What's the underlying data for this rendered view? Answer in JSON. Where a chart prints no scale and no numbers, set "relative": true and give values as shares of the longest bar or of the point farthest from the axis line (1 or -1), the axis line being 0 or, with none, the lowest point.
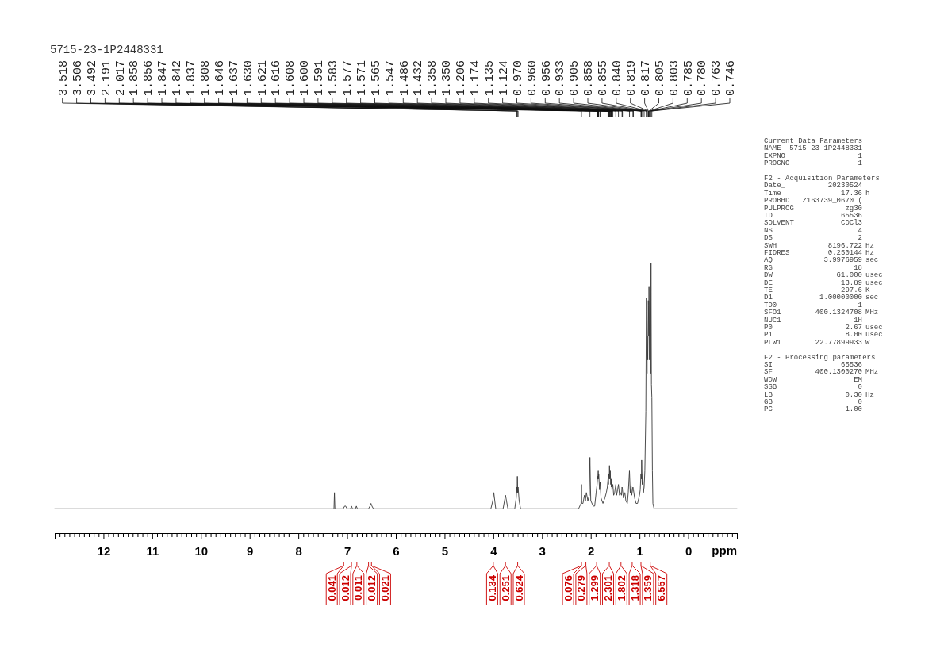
{
  "chart_data": {
    "type": "line",
    "title": "5715-23-1P2448331",
    "xlabel": "ppm",
    "relative": true,
    "xlim": [
      13,
      -1
    ],
    "xticks": [
      {
        "value": 13,
        "label": null
      },
      {
        "value": 12.9,
        "label": null
      },
      {
        "value": 12.8,
        "label": null
      },
      {
        "value": 12.7,
        "label": null
      },
      {
        "value": 12.6,
        "label": null
      },
      {
        "value": 12.5,
        "label": null
      },
      {
        "value": 12.4,
        "label": null
      },
      {
        "value": 12.3,
        "label": null
      },
      {
        "value": 12.2,
        "label": null
      },
      {
        "value": 12.1,
        "label": null
      },
      12,
      {
        "value": 11.9,
        "label": null
      },
      {
        "value": 11.8,
        "label": null
      },
      {
        "value": 11.7,
        "label": null
      },
      {
        "value": 11.6,
        "label": null
      },
      {
        "value": 11.5,
        "label": null
      },
      {
        "value": 11.4,
        "label": null
      },
      {
        "value": 11.3,
        "label": null
      },
      {
        "value": 11.2,
        "label": null
      },
      {
        "value": 11.1,
        "label": null
      },
      11,
      {
        "value": 10.9,
        "label": null
      },
      {
        "value": 10.8,
        "label": null
      },
      {
        "value": 10.7,
        "label": null
      },
      {
        "value": 10.6,
        "label": null
      },
      {
        "value": 10.5,
        "label": null
      },
      {
        "value": 10.4,
        "label": null
      },
      {
        "value": 10.3,
        "label": null
      },
      {
        "value": 10.2,
        "label": null
      },
      {
        "value": 10.1,
        "label": null
      },
      10,
      {
        "value": 9.9,
        "label": null
      },
      {
        "value": 9.8,
        "label": null
      },
      {
        "value": 9.7,
        "label": null
      },
      {
        "value": 9.6,
        "label": null
      },
      {
        "value": 9.5,
        "label": null
      },
      {
        "value": 9.4,
        "label": null
      },
      {
        "value": 9.3,
        "label": null
      },
      {
        "value": 9.2,
        "label": null
      },
      {
        "value": 9.1,
        "label": null
      },
      9,
      {
        "value": 8.9,
        "label": null
      },
      {
        "value": 8.8,
        "label": null
      },
      {
        "value": 8.7,
        "label": null
      },
      {
        "value": 8.6,
        "label": null
      },
      {
        "value": 8.5,
        "label": null
      },
      {
        "value": 8.4,
        "label": null
      },
      {
        "value": 8.3,
        "label": null
      },
      {
        "value": 8.2,
        "label": null
      },
      {
        "value": 8.1,
        "label": null
      },
      8,
      {
        "value": 7.9,
        "label": null
      },
      {
        "value": 7.8,
        "label": null
      },
      {
        "value": 7.7,
        "label": null
      },
      {
        "value": 7.6,
        "label": null
      },
      {
        "value": 7.5,
        "label": null
      },
      {
        "value": 7.4,
        "label": null
      },
      {
        "value": 7.3,
        "label": null
      },
      {
        "value": 7.2,
        "label": null
      },
      {
        "value": 7.1,
        "label": null
      },
      7,
      {
        "value": 6.9,
        "label": null
      },
      {
        "value": 6.8,
        "label": null
      },
      {
        "value": 6.7,
        "label": null
      },
      {
        "value": 6.6,
        "label": null
      },
      {
        "value": 6.5,
        "label": null
      },
      {
        "value": 6.4,
        "label": null
      },
      {
        "value": 6.3,
        "label": null
      },
      {
        "value": 6.2,
        "label": null
      },
      {
        "value": 6.1,
        "label": null
      },
      6,
      {
        "value": 5.9,
        "label": null
      },
      {
        "value": 5.8,
        "label": null
      },
      {
        "value": 5.7,
        "label": null
      },
      {
        "value": 5.6,
        "label": null
      },
      {
        "value": 5.5,
        "label": null
      },
      {
        "value": 5.4,
        "label": null
      },
      {
        "value": 5.3,
        "label": null
      },
      {
        "value": 5.2,
        "label": null
      },
      {
        "value": 5.1,
        "label": null
      },
      5,
      {
        "value": 4.9,
        "label": null
      },
      {
        "value": 4.8,
        "label": null
      },
      {
        "value": 4.7,
        "label": null
      },
      {
        "value": 4.6,
        "label": null
      },
      {
        "value": 4.5,
        "label": null
      },
      {
        "value": 4.4,
        "label": null
      },
      {
        "value": 4.3,
        "label": null
      },
      {
        "value": 4.2,
        "label": null
      },
      {
        "value": 4.1,
        "label": null
      },
      4,
      {
        "value": 3.9,
        "label": null
      },
      {
        "value": 3.8,
        "label": null
      },
      {
        "value": 3.7,
        "label": null
      },
      {
        "value": 3.6,
        "label": null
      },
      {
        "value": 3.5,
        "label": null
      },
      {
        "value": 3.4,
        "label": null
      },
      {
        "value": 3.3,
        "label": null
      },
      {
        "value": 3.2,
        "label": null
      },
      {
        "value": 3.1,
        "label": null
      },
      3,
      {
        "value": 2.9,
        "label": null
      },
      {
        "value": 2.8,
        "label": null
      },
      {
        "value": 2.7,
        "label": null
      },
      {
        "value": 2.6,
        "label": null
      },
      {
        "value": 2.5,
        "label": null
      },
      {
        "value": 2.4,
        "label": null
      },
      {
        "value": 2.3,
        "label": null
      },
      {
        "value": 2.2,
        "label": null
      },
      {
        "value": 2.1,
        "label": null
      },
      2,
      {
        "value": 1.9,
        "label": null
      },
      {
        "value": 1.8,
        "label": null
      },
      {
        "value": 1.7,
        "label": null
      },
      {
        "value": 1.6,
        "label": null
      },
      {
        "value": 1.5,
        "label": null
      },
      {
        "value": 1.4,
        "label": null
      },
      {
        "value": 1.3,
        "label": null
      },
      {
        "value": 1.2,
        "label": null
      },
      {
        "value": 1.1,
        "label": null
      },
      1,
      {
        "value": 0.9,
        "label": null
      },
      {
        "value": 0.8,
        "label": null
      },
      {
        "value": 0.7,
        "label": null
      },
      {
        "value": 0.6,
        "label": null
      },
      {
        "value": 0.5,
        "label": null
      },
      {
        "value": 0.4,
        "label": null
      },
      {
        "value": 0.3,
        "label": null
      },
      {
        "value": 0.2,
        "label": null
      },
      {
        "value": 0.1,
        "label": null
      },
      0,
      {
        "value": -0.1,
        "label": null
      },
      {
        "value": -0.2,
        "label": null
      },
      {
        "value": -0.3,
        "label": null
      },
      {
        "value": -0.4,
        "label": null
      },
      {
        "value": -0.5,
        "label": null
      },
      {
        "value": -0.6,
        "label": null
      },
      {
        "value": -0.7,
        "label": null
      },
      {
        "value": -0.8,
        "label": null
      },
      {
        "value": -0.9,
        "label": null
      },
      {
        "value": -1,
        "label": null
      }
    ],
    "series": [
      {
        "color": "#3a3a3a",
        "x": [
          13.0,
          7.4,
          7.27,
          7.26,
          7.25,
          7.08,
          7.05,
          7.03,
          7.0,
          6.93,
          6.91,
          6.89,
          6.83,
          6.81,
          6.79,
          6.56,
          6.53,
          6.51,
          6.49,
          6.46,
          4.05,
          4.01,
          3.99,
          3.97,
          3.95,
          3.8,
          3.77,
          3.75,
          3.73,
          3.7,
          3.56,
          3.53,
          3.518,
          3.512,
          3.506,
          3.499,
          3.492,
          3.47,
          3.44,
          2.25,
          2.2,
          2.191,
          2.185,
          2.16,
          2.13,
          2.11,
          2.09,
          2.06,
          2.03,
          2.017,
          2.0,
          1.95,
          1.92,
          1.89,
          1.87,
          1.858,
          1.856,
          1.847,
          1.842,
          1.837,
          1.82,
          1.808,
          1.79,
          1.75,
          1.71,
          1.68,
          1.66,
          1.646,
          1.637,
          1.63,
          1.621,
          1.616,
          1.608,
          1.6,
          1.591,
          1.583,
          1.577,
          1.571,
          1.565,
          1.547,
          1.53,
          1.51,
          1.486,
          1.47,
          1.45,
          1.432,
          1.41,
          1.39,
          1.37,
          1.358,
          1.35,
          1.33,
          1.3,
          1.28,
          1.25,
          1.23,
          1.206,
          1.19,
          1.174,
          1.16,
          1.135,
          1.124,
          1.1,
          1.07,
          1.04,
          1.0,
          0.985,
          0.97,
          0.96,
          0.956,
          0.945,
          0.933,
          0.92,
          0.905,
          0.89,
          0.87,
          0.858,
          0.855,
          0.845,
          0.84,
          0.83,
          0.819,
          0.817,
          0.81,
          0.805,
          0.803,
          0.795,
          0.785,
          0.78,
          0.77,
          0.763,
          0.755,
          0.746,
          0.735,
          0.725,
          0.7,
          -1.0
        ],
        "values": [
          0.09,
          0.09,
          0.09,
          0.15,
          0.09,
          0.09,
          0.1,
          0.1,
          0.09,
          0.09,
          0.1,
          0.09,
          0.09,
          0.1,
          0.09,
          0.09,
          0.1,
          0.11,
          0.1,
          0.09,
          0.09,
          0.12,
          0.15,
          0.12,
          0.09,
          0.09,
          0.12,
          0.14,
          0.12,
          0.09,
          0.09,
          0.13,
          0.17,
          0.15,
          0.21,
          0.15,
          0.17,
          0.12,
          0.09,
          0.09,
          0.11,
          0.18,
          0.11,
          0.11,
          0.14,
          0.12,
          0.15,
          0.12,
          0.14,
          0.28,
          0.12,
          0.1,
          0.1,
          0.15,
          0.18,
          0.21,
          0.2,
          0.23,
          0.2,
          0.22,
          0.16,
          0.19,
          0.13,
          0.11,
          0.13,
          0.15,
          0.17,
          0.2,
          0.18,
          0.22,
          0.2,
          0.25,
          0.2,
          0.23,
          0.18,
          0.2,
          0.17,
          0.19,
          0.16,
          0.18,
          0.14,
          0.15,
          0.18,
          0.14,
          0.16,
          0.18,
          0.14,
          0.15,
          0.14,
          0.17,
          0.16,
          0.13,
          0.15,
          0.12,
          0.11,
          0.15,
          0.23,
          0.15,
          0.18,
          0.14,
          0.17,
          0.16,
          0.13,
          0.11,
          0.11,
          0.14,
          0.16,
          0.22,
          0.2,
          0.27,
          0.18,
          0.22,
          0.15,
          0.17,
          0.23,
          0.45,
          0.87,
          0.82,
          0.59,
          0.73,
          0.64,
          0.86,
          0.84,
          0.73,
          0.91,
          0.86,
          0.64,
          0.86,
          0.82,
          0.59,
          1,
          0.55,
          0.5,
          0.23,
          0.11,
          0.09,
          0.09
        ]
      }
    ],
    "annotations": [
      {
        "text": "3.518",
        "x": 3.518
      },
      {
        "text": "3.506",
        "x": 3.506
      },
      {
        "text": "3.492",
        "x": 3.492
      },
      {
        "text": "2.191",
        "x": 2.191
      },
      {
        "text": "2.017",
        "x": 2.017
      },
      {
        "text": "1.858",
        "x": 1.858
      },
      {
        "text": "1.856",
        "x": 1.856
      },
      {
        "text": "1.847",
        "x": 1.847
      },
      {
        "text": "1.842",
        "x": 1.842
      },
      {
        "text": "1.837",
        "x": 1.837
      },
      {
        "text": "1.808",
        "x": 1.808
      },
      {
        "text": "1.646",
        "x": 1.646
      },
      {
        "text": "1.637",
        "x": 1.637
      },
      {
        "text": "1.630",
        "x": 1.63
      },
      {
        "text": "1.621",
        "x": 1.621
      },
      {
        "text": "1.616",
        "x": 1.616
      },
      {
        "text": "1.608",
        "x": 1.608
      },
      {
        "text": "1.600",
        "x": 1.6
      },
      {
        "text": "1.591",
        "x": 1.591
      },
      {
        "text": "1.583",
        "x": 1.583
      },
      {
        "text": "1.577",
        "x": 1.577
      },
      {
        "text": "1.571",
        "x": 1.571
      },
      {
        "text": "1.565",
        "x": 1.565
      },
      {
        "text": "1.547",
        "x": 1.547
      },
      {
        "text": "1.486",
        "x": 1.486
      },
      {
        "text": "1.432",
        "x": 1.432
      },
      {
        "text": "1.358",
        "x": 1.358
      },
      {
        "text": "1.350",
        "x": 1.35
      },
      {
        "text": "1.206",
        "x": 1.206
      },
      {
        "text": "1.174",
        "x": 1.174
      },
      {
        "text": "1.135",
        "x": 1.135
      },
      {
        "text": "1.124",
        "x": 1.124
      },
      {
        "text": "0.970",
        "x": 0.97
      },
      {
        "text": "0.960",
        "x": 0.96
      },
      {
        "text": "0.956",
        "x": 0.956
      },
      {
        "text": "0.933",
        "x": 0.933
      },
      {
        "text": "0.905",
        "x": 0.905
      },
      {
        "text": "0.858",
        "x": 0.858
      },
      {
        "text": "0.855",
        "x": 0.855
      },
      {
        "text": "0.840",
        "x": 0.84
      },
      {
        "text": "0.819",
        "x": 0.819
      },
      {
        "text": "0.817",
        "x": 0.817
      },
      {
        "text": "0.805",
        "x": 0.805
      },
      {
        "text": "0.803",
        "x": 0.803
      },
      {
        "text": "0.785",
        "x": 0.785
      },
      {
        "text": "0.780",
        "x": 0.78
      },
      {
        "text": "0.763",
        "x": 0.763
      },
      {
        "text": "0.746",
        "x": 0.746
      },
      {
        "text": "0.041",
        "x": 7.07
      },
      {
        "text": "0.012",
        "x": 6.91
      },
      {
        "text": "0.011",
        "x": 6.8
      },
      {
        "text": "0.012",
        "x": 6.56
      },
      {
        "text": "0.021",
        "x": 6.5
      },
      {
        "text": "0.134",
        "x": 4.0
      },
      {
        "text": "0.251",
        "x": 3.75
      },
      {
        "text": "0.624",
        "x": 3.5
      },
      {
        "text": "0.076",
        "x": 2.19
      },
      {
        "text": "0.279",
        "x": 2.1
      },
      {
        "text": "1.299",
        "x": 1.88
      },
      {
        "text": "2.301",
        "x": 1.62
      },
      {
        "text": "1.802",
        "x": 1.38
      },
      {
        "text": "1.318",
        "x": 1.15
      },
      {
        "text": "1.359",
        "x": 0.97
      },
      {
        "text": "6.557",
        "x": 0.78
      },
      "Current Data Parameters",
      "NAME\t5715-23-1P2448331",
      "EXPNO\t1",
      "PROCNO\t1",
      "F2 - Acquisition Parameters",
      "Date_\t20230524",
      "Time\t17.36\th",
      "PROBHD\tZ163739_0670 (",
      "PULPROG\tzg30",
      "TD\t65536",
      "SOLVENT\tCDCl3",
      "NS\t4",
      "DS\t2",
      "SWH\t8196.722\tHz",
      "FIDRES\t0.250144\tHz",
      "AQ\t3.9976959\tsec",
      "RG\t18",
      "DW\t61.000\tusec",
      "DE\t13.89\tusec",
      "TE\t297.6\tK",
      "D1\t1.00000000\tsec",
      "TD0\t1",
      "SFO1\t400.1324708\tMHz",
      "NUC1\t1H",
      "P0\t2.67\tusec",
      "P1\t8.00\tusec",
      "PLW1\t22.77899933\tW",
      "F2 - Processing parameters",
      "SI\t65536",
      "SF\t400.1300270\tMHz",
      "WDW\tEM",
      "SSB\t0",
      "LB\t0.30\tHz",
      "GB\t0",
      "PC\t1.00"
    ]
  }
}
